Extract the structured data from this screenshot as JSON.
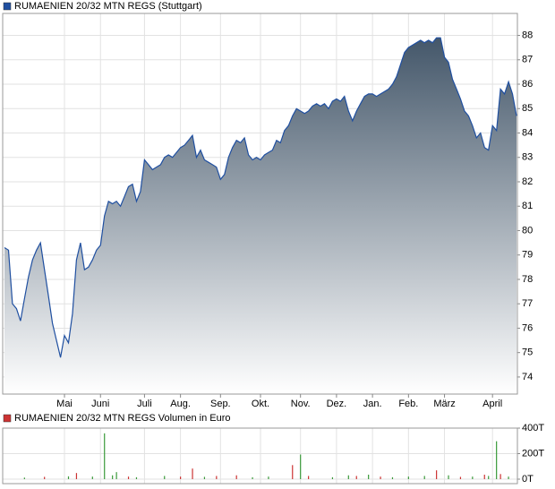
{
  "chart_data": [
    {
      "type": "area",
      "series": [
        {
          "name": "RUMAENIEN 20/32 MTN REGS (Stuttgart)",
          "color": "#1f4fa0",
          "fill_top": "#44576a",
          "fill_bottom": "#ffffff",
          "values": [
            79.3,
            79.2,
            77.0,
            76.8,
            76.3,
            77.2,
            78.1,
            78.8,
            79.2,
            79.5,
            78.4,
            77.3,
            76.2,
            75.5,
            74.8,
            75.7,
            75.4,
            76.6,
            78.8,
            79.5,
            78.4,
            78.5,
            78.8,
            79.2,
            79.4,
            80.6,
            81.2,
            81.1,
            81.2,
            81.0,
            81.4,
            81.8,
            81.9,
            81.2,
            81.6,
            82.9,
            82.7,
            82.5,
            82.6,
            82.7,
            83.0,
            83.1,
            83.0,
            83.2,
            83.4,
            83.5,
            83.7,
            83.9,
            83.0,
            83.3,
            82.9,
            82.8,
            82.7,
            82.6,
            82.1,
            82.3,
            83.0,
            83.4,
            83.7,
            83.6,
            83.8,
            83.1,
            82.9,
            83.0,
            82.9,
            83.1,
            83.2,
            83.3,
            83.7,
            83.6,
            84.1,
            84.3,
            84.7,
            85.0,
            84.9,
            84.8,
            84.9,
            85.1,
            85.2,
            85.1,
            85.2,
            85.0,
            85.3,
            85.4,
            85.3,
            85.5,
            84.9,
            84.5,
            84.9,
            85.2,
            85.5,
            85.6,
            85.6,
            85.5,
            85.6,
            85.7,
            85.8,
            86.0,
            86.3,
            86.8,
            87.3,
            87.5,
            87.6,
            87.7,
            87.8,
            87.7,
            87.8,
            87.7,
            87.9,
            87.9,
            87.1,
            86.9,
            86.2,
            85.8,
            85.4,
            84.9,
            84.7,
            84.3,
            83.8,
            84.0,
            83.4,
            83.3,
            84.3,
            84.1,
            85.8,
            85.6,
            86.1,
            85.6,
            84.7
          ]
        }
      ],
      "categories": [
        null,
        null,
        null,
        null,
        null,
        null,
        null,
        null,
        null,
        null,
        null,
        null,
        null,
        null,
        null,
        "Mai",
        null,
        null,
        null,
        null,
        null,
        null,
        null,
        null,
        "Juni",
        null,
        null,
        null,
        null,
        null,
        null,
        null,
        null,
        null,
        null,
        "Juli",
        null,
        null,
        null,
        null,
        null,
        null,
        null,
        null,
        "Aug.",
        null,
        null,
        null,
        null,
        null,
        null,
        null,
        null,
        null,
        "Sep.",
        null,
        null,
        null,
        null,
        null,
        null,
        null,
        null,
        null,
        "Okt.",
        null,
        null,
        null,
        null,
        null,
        null,
        null,
        null,
        null,
        "Nov.",
        null,
        null,
        null,
        null,
        null,
        null,
        null,
        null,
        "Dez.",
        null,
        null,
        null,
        null,
        null,
        null,
        null,
        null,
        "Jan.",
        null,
        null,
        null,
        null,
        null,
        null,
        null,
        null,
        "Feb.",
        null,
        null,
        null,
        null,
        null,
        null,
        null,
        null,
        "März",
        null,
        null,
        null,
        null,
        null,
        null,
        null,
        null,
        null,
        null,
        null,
        "April",
        null,
        null,
        null,
        null,
        null,
        null
      ],
      "ylim": [
        73.3,
        88.9
      ],
      "yticks": [
        74,
        75,
        76,
        77,
        78,
        79,
        80,
        81,
        82,
        83,
        84,
        85,
        86,
        87,
        88
      ],
      "grid": true
    },
    {
      "type": "bar",
      "series": [
        {
          "name": "RUMAENIEN 20/32 MTN REGS Volumen in Euro",
          "color": "#cc3333",
          "values": [
            null,
            null,
            null,
            null,
            null,
            12,
            null,
            null,
            null,
            null,
            18,
            null,
            null,
            null,
            null,
            null,
            22,
            null,
            48,
            null,
            null,
            null,
            20,
            null,
            null,
            359,
            null,
            30,
            55,
            null,
            null,
            20,
            null,
            15,
            null,
            null,
            null,
            null,
            null,
            null,
            25,
            null,
            null,
            null,
            20,
            null,
            null,
            83,
            null,
            null,
            18,
            null,
            null,
            25,
            null,
            null,
            null,
            null,
            30,
            null,
            null,
            null,
            15,
            null,
            null,
            null,
            20,
            null,
            null,
            null,
            null,
            null,
            110,
            null,
            193,
            null,
            25,
            null,
            null,
            null,
            null,
            null,
            15,
            null,
            null,
            null,
            30,
            null,
            25,
            null,
            null,
            35,
            null,
            null,
            20,
            null,
            null,
            15,
            null,
            null,
            null,
            20,
            null,
            null,
            null,
            25,
            null,
            null,
            69,
            null,
            null,
            30,
            null,
            null,
            18,
            null,
            null,
            20,
            null,
            null,
            35,
            25,
            null,
            297,
            40,
            null,
            20,
            null,
            null
          ],
          "colors": [
            null,
            null,
            null,
            null,
            null,
            "#3a9a3a",
            null,
            null,
            null,
            null,
            "#cc3333",
            null,
            null,
            null,
            null,
            null,
            "#3a9a3a",
            null,
            "#cc3333",
            null,
            null,
            null,
            "#3a9a3a",
            null,
            null,
            "#3a9a3a",
            null,
            "#3a9a3a",
            "#3a9a3a",
            null,
            null,
            "#cc3333",
            null,
            "#3a9a3a",
            null,
            null,
            null,
            null,
            null,
            null,
            "#3a9a3a",
            null,
            null,
            null,
            "#cc3333",
            null,
            null,
            "#cc3333",
            null,
            null,
            "#3a9a3a",
            null,
            null,
            "#cc3333",
            null,
            null,
            null,
            null,
            "#cc3333",
            null,
            null,
            null,
            "#3a9a3a",
            null,
            null,
            null,
            "#3a9a3a",
            null,
            null,
            null,
            null,
            null,
            "#cc3333",
            null,
            "#3a9a3a",
            null,
            "#cc3333",
            null,
            null,
            null,
            null,
            null,
            "#3a9a3a",
            null,
            null,
            null,
            "#3a9a3a",
            null,
            "#cc3333",
            null,
            null,
            "#3a9a3a",
            null,
            null,
            "#cc3333",
            null,
            null,
            "#3a9a3a",
            null,
            null,
            null,
            "#3a9a3a",
            null,
            null,
            null,
            "#3a9a3a",
            null,
            null,
            "#cc3333",
            null,
            null,
            "#3a9a3a",
            null,
            null,
            "#cc3333",
            null,
            null,
            "#3a9a3a",
            null,
            null,
            "#cc3333",
            "#3a9a3a",
            null,
            "#3a9a3a",
            "#cc3333",
            null,
            "#3a9a3a",
            null,
            null
          ]
        }
      ],
      "ylim": [
        0,
        400
      ],
      "yticks": [
        {
          "value": 0,
          "label": "0T"
        },
        {
          "value": 200,
          "label": "200T"
        },
        {
          "value": 400,
          "label": "400T"
        }
      ],
      "grid": true
    }
  ]
}
